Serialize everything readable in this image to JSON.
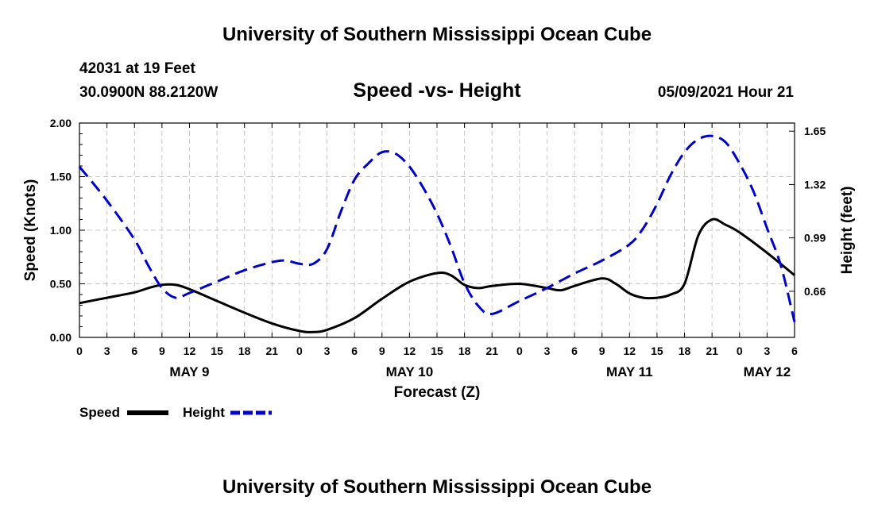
{
  "header": {
    "top_title": "University of Southern Mississippi Ocean Cube",
    "bottom_title": "University of Southern Mississippi Ocean Cube",
    "station": "42031 at 19 Feet",
    "coords": "30.0900N  88.2120W",
    "datetime": "05/09/2021 Hour 21"
  },
  "chart_data": {
    "type": "line",
    "title": "Speed -vs- Height",
    "xlabel": "Forecast (Z)",
    "ylabel_left": "Speed (Knots)",
    "ylabel_right": "Height (feet)",
    "x_range_hours": [
      0,
      78
    ],
    "x_ticks": [
      {
        "h": 0,
        "label": "0"
      },
      {
        "h": 3,
        "label": "3"
      },
      {
        "h": 6,
        "label": "6"
      },
      {
        "h": 9,
        "label": "9"
      },
      {
        "h": 12,
        "label": "12"
      },
      {
        "h": 15,
        "label": "15"
      },
      {
        "h": 18,
        "label": "18"
      },
      {
        "h": 21,
        "label": "21"
      },
      {
        "h": 24,
        "label": "0"
      },
      {
        "h": 27,
        "label": "3"
      },
      {
        "h": 30,
        "label": "6"
      },
      {
        "h": 33,
        "label": "9"
      },
      {
        "h": 36,
        "label": "12"
      },
      {
        "h": 39,
        "label": "15"
      },
      {
        "h": 42,
        "label": "18"
      },
      {
        "h": 45,
        "label": "21"
      },
      {
        "h": 48,
        "label": "0"
      },
      {
        "h": 51,
        "label": "3"
      },
      {
        "h": 54,
        "label": "6"
      },
      {
        "h": 57,
        "label": "9"
      },
      {
        "h": 60,
        "label": "12"
      },
      {
        "h": 63,
        "label": "15"
      },
      {
        "h": 66,
        "label": "18"
      },
      {
        "h": 69,
        "label": "21"
      },
      {
        "h": 72,
        "label": "0"
      },
      {
        "h": 75,
        "label": "3"
      },
      {
        "h": 78,
        "label": "6"
      }
    ],
    "date_labels": [
      {
        "h": 12,
        "label": "MAY 9"
      },
      {
        "h": 36,
        "label": "MAY 10"
      },
      {
        "h": 60,
        "label": "MAY 11"
      },
      {
        "h": 75,
        "label": "MAY 12"
      }
    ],
    "y_left": {
      "range": [
        0,
        2
      ],
      "ticks": [
        0,
        0.5,
        1,
        1.5,
        2
      ],
      "labels": [
        "0.00",
        "0.50",
        "1.00",
        "1.50",
        "2.00"
      ]
    },
    "y_right": {
      "range": [
        0.375,
        1.7
      ],
      "ticks": [
        0.66,
        0.99,
        1.32,
        1.65
      ],
      "labels": [
        "0.66",
        "0.99",
        "1.32",
        "1.65"
      ]
    },
    "grid": true,
    "series": [
      {
        "name": "Speed",
        "axis": "left",
        "color": "#000000",
        "style": "solid",
        "x": [
          0,
          3,
          6,
          7.5,
          9,
          10.5,
          12,
          15,
          18,
          21,
          24,
          25.5,
          27,
          30,
          33,
          36,
          39,
          40.5,
          42,
          43.5,
          45,
          48,
          51,
          52.5,
          54,
          57,
          58.5,
          60,
          61.5,
          63,
          64.5,
          66,
          67.5,
          69,
          70.5,
          72,
          75,
          78
        ],
        "y": [
          0.32,
          0.37,
          0.42,
          0.46,
          0.49,
          0.49,
          0.45,
          0.34,
          0.23,
          0.13,
          0.06,
          0.05,
          0.07,
          0.18,
          0.36,
          0.52,
          0.6,
          0.58,
          0.49,
          0.46,
          0.48,
          0.5,
          0.46,
          0.44,
          0.48,
          0.55,
          0.5,
          0.41,
          0.37,
          0.37,
          0.4,
          0.5,
          0.95,
          1.1,
          1.05,
          0.98,
          0.79,
          0.58
        ]
      },
      {
        "name": "Height",
        "axis": "right",
        "color": "#0000cc",
        "style": "dashed",
        "x": [
          0,
          3,
          6,
          7.5,
          9,
          10.5,
          12,
          15,
          18,
          21,
          22.5,
          24,
          25.5,
          27,
          28.5,
          30,
          31.5,
          33,
          34.5,
          36,
          37.5,
          39,
          40.5,
          42,
          43.5,
          45,
          48,
          51,
          54,
          57,
          60,
          61.5,
          63,
          64.5,
          66,
          67.5,
          69,
          70.5,
          72,
          73.5,
          75,
          76.5,
          78
        ],
        "y": [
          1.43,
          1.22,
          0.98,
          0.82,
          0.68,
          0.62,
          0.65,
          0.72,
          0.79,
          0.84,
          0.85,
          0.83,
          0.83,
          0.92,
          1.15,
          1.35,
          1.45,
          1.52,
          1.51,
          1.43,
          1.3,
          1.14,
          0.94,
          0.71,
          0.57,
          0.52,
          0.6,
          0.68,
          0.77,
          0.85,
          0.95,
          1.05,
          1.2,
          1.38,
          1.52,
          1.6,
          1.62,
          1.58,
          1.45,
          1.28,
          1.05,
          0.82,
          0.47
        ]
      }
    ],
    "legend": {
      "position": "bottom-left",
      "items": [
        "Speed",
        "Height"
      ]
    }
  }
}
